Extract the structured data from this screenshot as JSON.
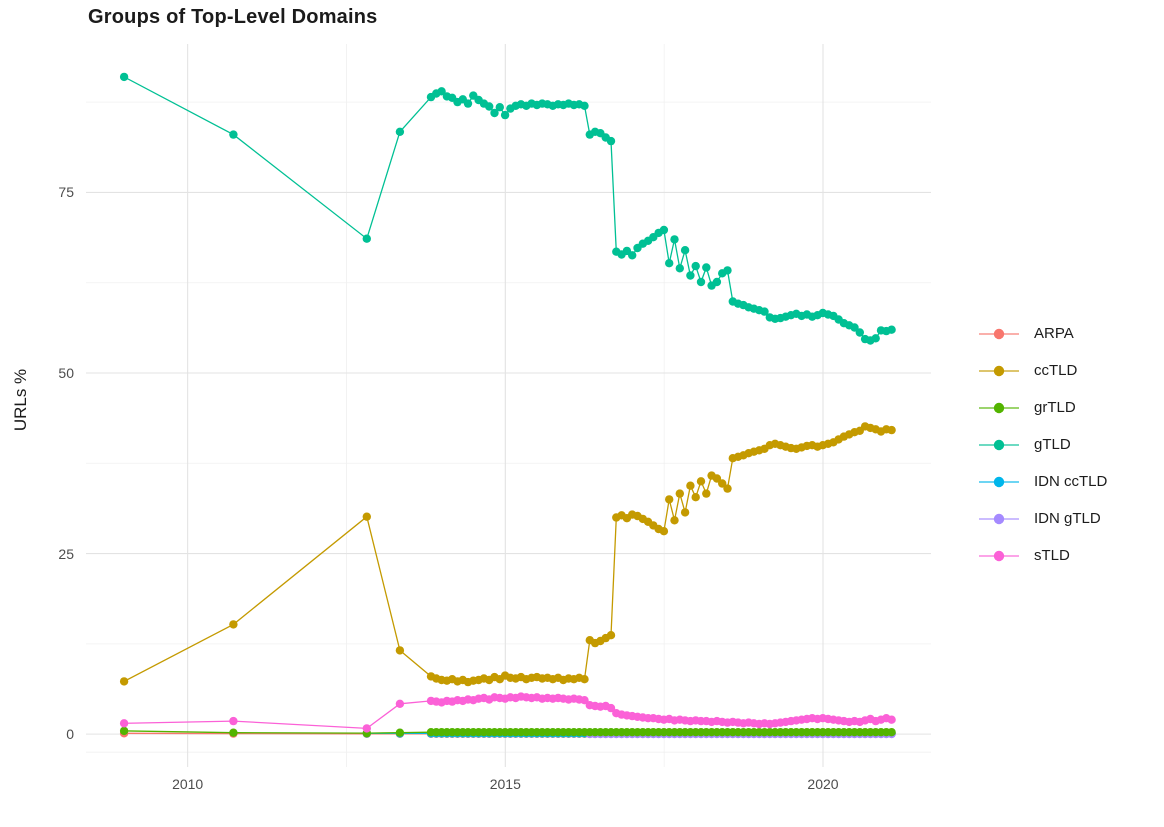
{
  "title": "Groups of Top-Level Domains",
  "axes": {
    "y_title": "URLs %",
    "y_ticks": [
      {
        "label": "0",
        "value": 0
      },
      {
        "label": "25",
        "value": 25
      },
      {
        "label": "50",
        "value": 50
      },
      {
        "label": "75",
        "value": 75
      }
    ],
    "x_ticks": [
      {
        "label": "2010",
        "year": 2010
      },
      {
        "label": "2015",
        "year": 2015
      },
      {
        "label": "2020",
        "year": 2020
      }
    ]
  },
  "legend": {
    "items": [
      {
        "label": "ARPA",
        "color": "#F8766D"
      },
      {
        "label": "ccTLD",
        "color": "#C49A00"
      },
      {
        "label": "grTLD",
        "color": "#53B400"
      },
      {
        "label": "gTLD",
        "color": "#00C094"
      },
      {
        "label": "IDN ccTLD",
        "color": "#00B6EB"
      },
      {
        "label": "IDN gTLD",
        "color": "#A58AFF"
      },
      {
        "label": "sTLD",
        "color": "#FB61D7"
      }
    ]
  },
  "chart_data": {
    "type": "line",
    "title": "Groups of Top-Level Domains",
    "xlabel": "",
    "ylabel": "URLs %",
    "x_domain": [
      2008.4,
      2021.7
    ],
    "y_domain": [
      -4.55,
      95.55
    ],
    "x_major": [
      2010,
      2015,
      2020
    ],
    "x_minor": [
      2012.5,
      2017.5
    ],
    "y_major": [
      0,
      25,
      50,
      75
    ],
    "y_minor": [
      -2.5,
      12.5,
      37.5,
      62.5,
      87.5
    ],
    "layout": {
      "grid": true,
      "grid_major_color": "#E3E3E3",
      "grid_minor_color": "#F0F0F0",
      "legend_position": "right",
      "point_radius": 4.2,
      "line_width": 1.3
    },
    "draw_order": [
      "ARPA",
      "IDN ccTLD",
      "IDN gTLD",
      "grTLD",
      "ccTLD",
      "gTLD",
      "sTLD"
    ],
    "series": [
      {
        "name": "ARPA",
        "color": "#F8766D",
        "points": [
          [
            2009.0,
            0.12
          ],
          [
            2010.72,
            0.08
          ],
          [
            2012.82,
            0.05
          ],
          [
            2013.34,
            0.05
          ]
        ],
        "flat": {
          "from": 2013.83,
          "to": 2021.08,
          "step": 0.08333,
          "value": 0.05
        }
      },
      {
        "name": "IDN ccTLD",
        "color": "#00B6EB",
        "points": [
          [
            2012.82,
            0.1
          ],
          [
            2013.34,
            0.1
          ]
        ],
        "flat": {
          "from": 2013.83,
          "to": 2021.08,
          "step": 0.08333,
          "value": 0.1
        }
      },
      {
        "name": "IDN gTLD",
        "color": "#A58AFF",
        "points": [],
        "flat": {
          "from": 2016.33,
          "to": 2021.08,
          "step": 0.08333,
          "value": 0.02
        }
      },
      {
        "name": "grTLD",
        "color": "#53B400",
        "points": [
          [
            2009.0,
            0.45
          ],
          [
            2010.72,
            0.2
          ],
          [
            2012.82,
            0.15
          ],
          [
            2013.34,
            0.2
          ]
        ],
        "flat": {
          "from": 2013.83,
          "to": 2021.08,
          "step": 0.08333,
          "value": 0.27
        }
      },
      {
        "name": "ccTLD",
        "color": "#C49A00",
        "points": [
          [
            2009.0,
            7.3
          ],
          [
            2010.72,
            15.2
          ],
          [
            2012.82,
            30.1
          ],
          [
            2013.34,
            11.6
          ]
        ],
        "monthly": {
          "start": 2013.83,
          "step": 0.08333,
          "values": [
            8.0,
            7.7,
            7.5,
            7.4,
            7.6,
            7.3,
            7.5,
            7.2,
            7.4,
            7.5,
            7.7,
            7.5,
            7.9,
            7.6,
            8.1,
            7.8,
            7.7,
            7.9,
            7.6,
            7.8,
            7.9,
            7.7,
            7.8,
            7.6,
            7.8,
            7.5,
            7.7,
            7.6,
            7.8,
            7.6,
            13.0,
            12.6,
            12.9,
            13.3,
            13.7,
            30.0,
            30.3,
            29.9,
            30.4,
            30.2,
            29.8,
            29.4,
            28.9,
            28.4,
            28.1,
            32.5,
            29.6,
            33.3,
            30.7,
            34.4,
            32.8,
            35.0,
            33.3,
            35.8,
            35.4,
            34.7,
            34.0,
            38.2,
            38.4,
            38.6,
            38.9,
            39.1,
            39.3,
            39.5,
            40.0,
            40.2,
            40.0,
            39.8,
            39.6,
            39.5,
            39.7,
            39.9,
            40.0,
            39.8,
            40.0,
            40.2,
            40.4,
            40.8,
            41.2,
            41.5,
            41.8,
            42.0,
            42.6,
            42.4,
            42.2,
            41.9,
            42.2,
            42.1
          ]
        }
      },
      {
        "name": "gTLD",
        "color": "#00C094",
        "points": [
          [
            2009.0,
            91.0
          ],
          [
            2010.72,
            83.0
          ],
          [
            2012.82,
            68.6
          ],
          [
            2013.34,
            83.4
          ]
        ],
        "monthly": {
          "start": 2013.83,
          "step": 0.08333,
          "values": [
            88.2,
            88.7,
            89.0,
            88.3,
            88.1,
            87.5,
            87.9,
            87.3,
            88.4,
            87.8,
            87.3,
            86.9,
            86.0,
            86.8,
            85.7,
            86.6,
            87.0,
            87.2,
            87.0,
            87.3,
            87.1,
            87.3,
            87.2,
            87.0,
            87.2,
            87.1,
            87.3,
            87.1,
            87.2,
            87.0,
            83.0,
            83.4,
            83.2,
            82.6,
            82.1,
            66.8,
            66.4,
            66.9,
            66.3,
            67.3,
            67.9,
            68.3,
            68.8,
            69.4,
            69.8,
            65.2,
            68.5,
            64.5,
            67.0,
            63.5,
            64.8,
            62.6,
            64.6,
            62.1,
            62.6,
            63.8,
            64.2,
            59.9,
            59.6,
            59.4,
            59.1,
            58.9,
            58.7,
            58.5,
            57.7,
            57.5,
            57.6,
            57.8,
            58.0,
            58.2,
            57.9,
            58.1,
            57.8,
            58.0,
            58.3,
            58.1,
            57.9,
            57.4,
            56.9,
            56.6,
            56.3,
            55.6,
            54.7,
            54.5,
            54.8,
            55.9,
            55.8,
            56.0
          ]
        }
      },
      {
        "name": "sTLD",
        "color": "#FB61D7",
        "points": [
          [
            2009.0,
            1.5
          ],
          [
            2010.72,
            1.8
          ],
          [
            2012.82,
            0.8
          ],
          [
            2013.34,
            4.2
          ]
        ],
        "monthly": {
          "start": 2013.83,
          "step": 0.08333,
          "values": [
            4.6,
            4.5,
            4.4,
            4.6,
            4.5,
            4.7,
            4.6,
            4.8,
            4.7,
            4.9,
            5.0,
            4.8,
            5.1,
            5.0,
            4.9,
            5.1,
            5.0,
            5.2,
            5.1,
            5.0,
            5.1,
            4.9,
            5.0,
            4.9,
            5.0,
            4.9,
            4.8,
            4.9,
            4.8,
            4.7,
            4.0,
            3.9,
            3.8,
            3.9,
            3.6,
            2.9,
            2.7,
            2.6,
            2.5,
            2.4,
            2.3,
            2.2,
            2.2,
            2.1,
            2.0,
            2.1,
            1.9,
            2.0,
            1.9,
            1.8,
            1.9,
            1.8,
            1.8,
            1.7,
            1.8,
            1.7,
            1.6,
            1.7,
            1.6,
            1.5,
            1.6,
            1.5,
            1.4,
            1.5,
            1.4,
            1.5,
            1.6,
            1.7,
            1.8,
            1.9,
            2.0,
            2.1,
            2.2,
            2.1,
            2.2,
            2.1,
            2.0,
            1.9,
            1.8,
            1.7,
            1.8,
            1.7,
            1.9,
            2.1,
            1.8,
            2.0,
            2.2,
            2.0
          ]
        }
      }
    ]
  }
}
